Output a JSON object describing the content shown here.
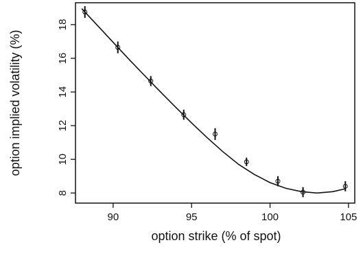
{
  "chart_data": {
    "type": "scatter",
    "xlabel": "option strike (% of spot)",
    "ylabel": "option implied volatility (%)",
    "xlim": [
      87.6,
      105.4
    ],
    "ylim": [
      7.4,
      19.3
    ],
    "xticks": [
      90,
      95,
      100,
      105
    ],
    "yticks": [
      8,
      10,
      12,
      14,
      16,
      18
    ],
    "points": [
      {
        "x": 88.2,
        "y": 18.75,
        "err": 0.35
      },
      {
        "x": 90.3,
        "y": 16.65,
        "err": 0.35
      },
      {
        "x": 92.4,
        "y": 14.65,
        "err": 0.3
      },
      {
        "x": 94.5,
        "y": 12.65,
        "err": 0.3
      },
      {
        "x": 96.5,
        "y": 11.5,
        "err": 0.35
      },
      {
        "x": 98.5,
        "y": 9.85,
        "err": 0.25
      },
      {
        "x": 100.5,
        "y": 8.7,
        "err": 0.3
      },
      {
        "x": 102.1,
        "y": 8.05,
        "err": 0.3
      },
      {
        "x": 104.8,
        "y": 8.4,
        "err": 0.3
      }
    ],
    "fit_curve": [
      {
        "x": 88.0,
        "y": 18.95
      },
      {
        "x": 89.0,
        "y": 17.95
      },
      {
        "x": 90.0,
        "y": 16.95
      },
      {
        "x": 91.0,
        "y": 15.95
      },
      {
        "x": 92.0,
        "y": 14.98
      },
      {
        "x": 93.0,
        "y": 14.02
      },
      {
        "x": 94.0,
        "y": 13.08
      },
      {
        "x": 95.0,
        "y": 12.16
      },
      {
        "x": 96.0,
        "y": 11.28
      },
      {
        "x": 97.0,
        "y": 10.45
      },
      {
        "x": 98.0,
        "y": 9.7
      },
      {
        "x": 99.0,
        "y": 9.1
      },
      {
        "x": 100.0,
        "y": 8.62
      },
      {
        "x": 101.0,
        "y": 8.28
      },
      {
        "x": 102.0,
        "y": 8.08
      },
      {
        "x": 103.0,
        "y": 8.0
      },
      {
        "x": 104.0,
        "y": 8.08
      },
      {
        "x": 104.8,
        "y": 8.25
      }
    ]
  }
}
